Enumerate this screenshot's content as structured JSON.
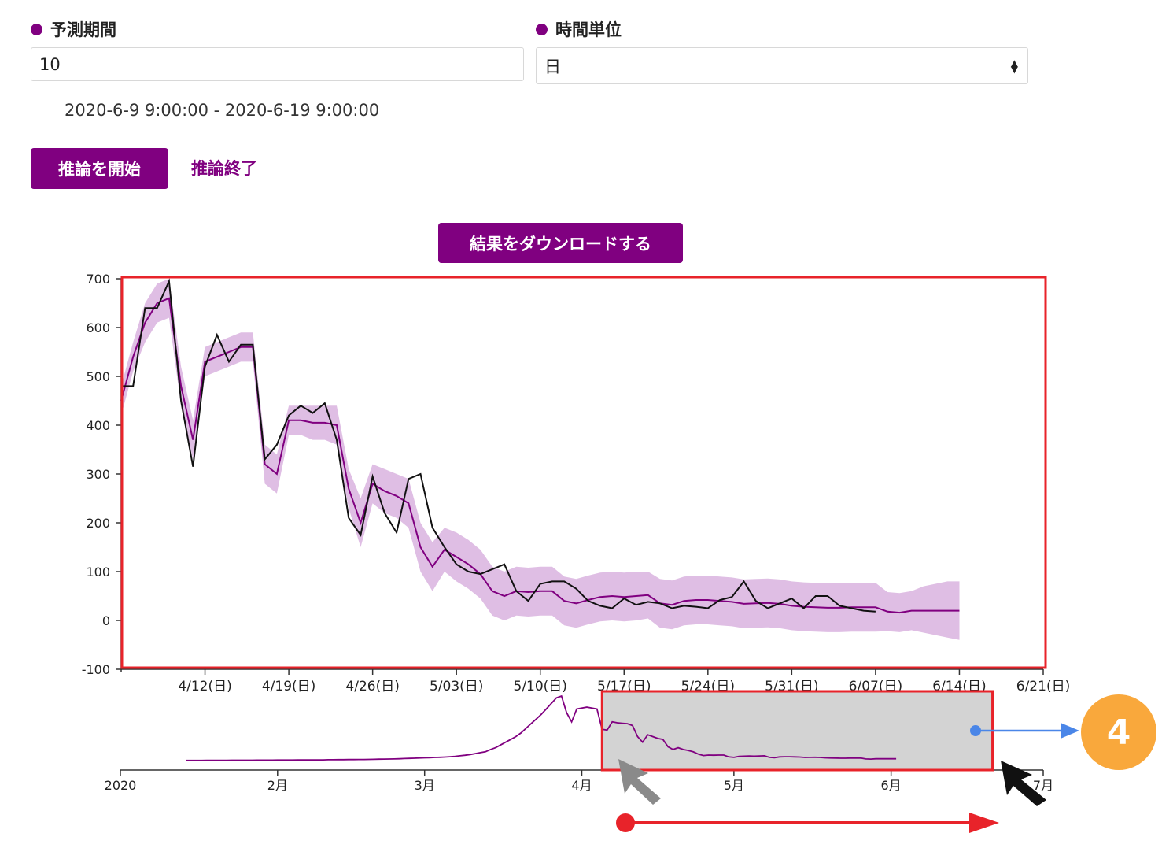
{
  "form": {
    "forecast_period_label": "予測期間",
    "forecast_period_value": "10",
    "time_unit_label": "時間単位",
    "time_unit_value": "日",
    "date_range": "2020-6-9 9:00:00 - 2020-6-19 9:00:00"
  },
  "actions": {
    "start_label": "推論を開始",
    "stop_label": "推論終了",
    "download_label": "結果をダウンロードする"
  },
  "annotation": {
    "callout_number": "4"
  },
  "colors": {
    "accent": "#800080",
    "band": "#d9b3df",
    "actual": "#111111",
    "highlight": "#e8232a",
    "callout": "#f9a83c",
    "arrow_blue": "#4a86e8"
  },
  "chart_data": [
    {
      "type": "line",
      "title": "",
      "ylim": [
        -100,
        700
      ],
      "yticks": [
        "700",
        "600",
        "500",
        "400",
        "300",
        "200",
        "100",
        "0",
        "-100"
      ],
      "xlim": [
        "2020-04-05",
        "2020-06-21"
      ],
      "xticks": [
        "4/12(日)",
        "4/19(日)",
        "4/26(日)",
        "5/03(日)",
        "5/10(日)",
        "5/17(日)",
        "5/24(日)",
        "5/31(日)",
        "6/07(日)",
        "6/14(日)",
        "6/21(日)"
      ],
      "grid": false,
      "legend": "none",
      "series": [
        {
          "role": "prediction",
          "x_start": "2020-04-05",
          "values": [
            450,
            540,
            610,
            650,
            660,
            480,
            370,
            530,
            540,
            550,
            560,
            560,
            320,
            300,
            410,
            410,
            405,
            405,
            400,
            270,
            200,
            280,
            265,
            255,
            240,
            150,
            110,
            145,
            130,
            115,
            95,
            60,
            50,
            60,
            58,
            60,
            60,
            40,
            35,
            42,
            48,
            50,
            48,
            50,
            52,
            35,
            32,
            40,
            42,
            42,
            40,
            38,
            34,
            35,
            36,
            34,
            30,
            28,
            27,
            26,
            26,
            27,
            27,
            27,
            18,
            16,
            20,
            20,
            20,
            20,
            20
          ]
        },
        {
          "role": "actual",
          "x_start": "2020-04-05",
          "values": [
            480,
            480,
            640,
            640,
            695,
            450,
            315,
            520,
            585,
            530,
            565,
            565,
            330,
            360,
            420,
            440,
            425,
            445,
            370,
            210,
            175,
            295,
            220,
            180,
            290,
            300,
            190,
            150,
            115,
            100,
            95,
            105,
            115,
            60,
            40,
            75,
            80,
            80,
            65,
            40,
            30,
            25,
            45,
            32,
            38,
            35,
            25,
            30,
            28,
            25,
            42,
            48,
            80,
            40,
            25,
            35,
            45,
            25,
            50,
            50,
            30,
            25,
            20,
            18
          ]
        },
        {
          "role": "prediction_band",
          "x_start": "2020-04-05",
          "upper": [
            480,
            570,
            650,
            690,
            700,
            520,
            410,
            560,
            570,
            580,
            590,
            590,
            360,
            340,
            440,
            440,
            440,
            440,
            440,
            310,
            250,
            320,
            310,
            300,
            290,
            200,
            160,
            190,
            180,
            165,
            145,
            110,
            100,
            110,
            108,
            110,
            110,
            90,
            85,
            92,
            98,
            100,
            98,
            100,
            100,
            85,
            82,
            90,
            92,
            92,
            90,
            88,
            84,
            85,
            86,
            84,
            80,
            78,
            77,
            76,
            76,
            77,
            77,
            77,
            58,
            56,
            60,
            70,
            75,
            80,
            80
          ],
          "lower": [
            420,
            510,
            570,
            610,
            620,
            440,
            330,
            500,
            510,
            520,
            530,
            530,
            280,
            260,
            380,
            380,
            370,
            370,
            360,
            230,
            150,
            240,
            220,
            210,
            190,
            100,
            60,
            100,
            80,
            65,
            45,
            10,
            0,
            10,
            8,
            10,
            10,
            -10,
            -15,
            -8,
            -2,
            0,
            -2,
            0,
            4,
            -15,
            -18,
            -10,
            -8,
            -8,
            -10,
            -12,
            -16,
            -15,
            -14,
            -16,
            -20,
            -22,
            -23,
            -24,
            -24,
            -23,
            -23,
            -23,
            -22,
            -24,
            -20,
            -25,
            -30,
            -35,
            -40
          ]
        }
      ]
    },
    {
      "type": "line",
      "role": "range-navigator",
      "xticks": [
        "2020",
        "2月",
        "3月",
        "4月",
        "5月",
        "6月",
        "7月"
      ],
      "selected_range": [
        "2020-04-05",
        "2020-06-21"
      ],
      "series": [
        {
          "role": "overview",
          "x_start": "2020-01-14",
          "values": [
            2,
            2,
            2,
            2,
            3,
            3,
            3,
            3,
            3,
            4,
            4,
            4,
            4,
            4,
            5,
            5,
            5,
            5,
            6,
            6,
            6,
            6,
            7,
            7,
            7,
            8,
            8,
            8,
            9,
            9,
            10,
            10,
            11,
            11,
            12,
            12,
            13,
            14,
            15,
            16,
            17,
            18,
            20,
            22,
            24,
            26,
            28,
            30,
            32,
            34,
            36,
            38,
            42,
            46,
            52,
            58,
            66,
            76,
            86,
            96,
            120,
            140,
            170,
            200,
            230,
            260,
            300,
            350,
            400,
            450,
            500,
            560,
            620,
            680,
            700,
            520,
            420,
            560,
            570,
            580,
            570,
            560,
            340,
            330,
            420,
            410,
            405,
            400,
            380,
            260,
            200,
            280,
            260,
            240,
            230,
            150,
            120,
            140,
            120,
            110,
            95,
            70,
            55,
            60,
            58,
            60,
            60,
            40,
            35,
            45,
            48,
            50,
            48,
            50,
            52,
            35,
            32,
            40,
            42,
            42,
            40,
            38,
            34,
            35,
            36,
            34,
            30,
            28,
            27,
            26,
            26,
            27,
            27,
            27,
            18,
            16,
            20,
            20,
            20,
            20,
            20
          ]
        }
      ]
    }
  ]
}
